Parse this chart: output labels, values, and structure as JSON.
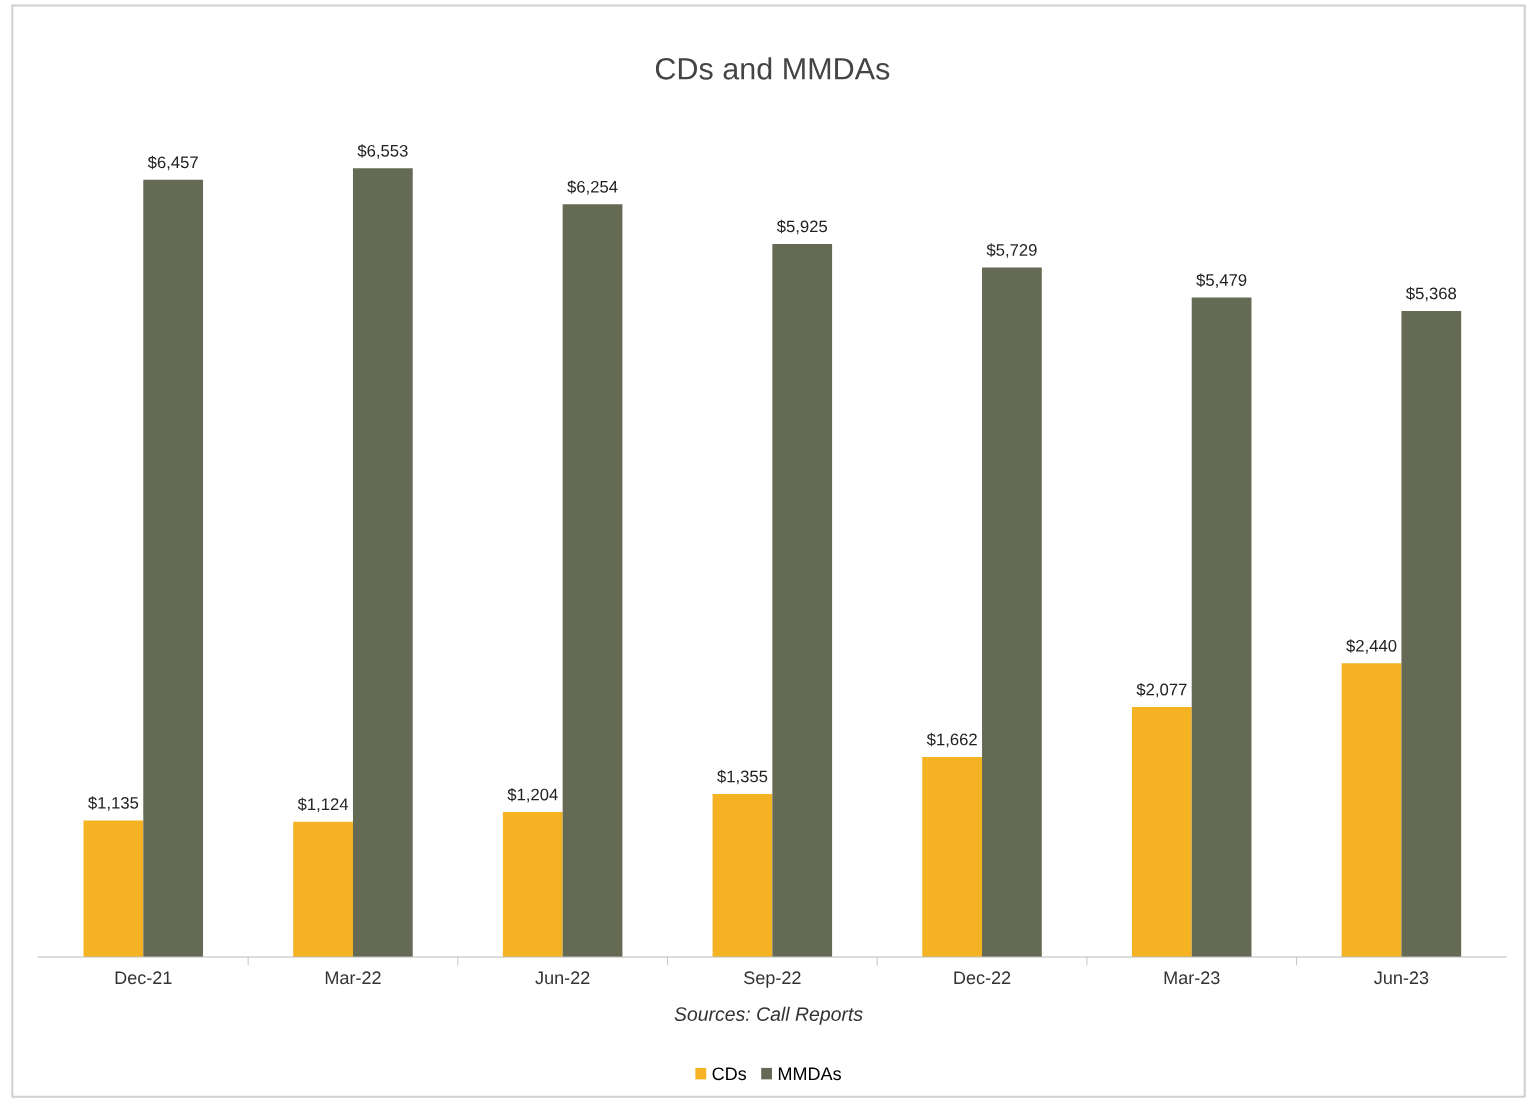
{
  "chart_data": {
    "type": "bar",
    "title": "CDs and MMDAs",
    "categories": [
      "Dec-21",
      "Mar-22",
      "Jun-22",
      "Sep-22",
      "Dec-22",
      "Mar-23",
      "Jun-23"
    ],
    "series": [
      {
        "name": "CDs",
        "color": "#f5b223",
        "values": [
          1135,
          1124,
          1204,
          1355,
          1662,
          2077,
          2440
        ],
        "value_labels": [
          "$1,135",
          "$1,124",
          "$1,204",
          "$1,355",
          "$1,662",
          "$2,077",
          "$2,440"
        ]
      },
      {
        "name": "MMDAs",
        "color": "#656a55",
        "values": [
          6457,
          6553,
          6254,
          5925,
          5729,
          5479,
          5368
        ],
        "value_labels": [
          "$6,457",
          "$6,553",
          "$6,254",
          "$5,925",
          "$5,729",
          "$5,479",
          "$5,368"
        ]
      }
    ],
    "annotations": [
      "Sources: Call Reports"
    ],
    "tick_labels": "x",
    "grid": false,
    "legend": "bottom"
  }
}
